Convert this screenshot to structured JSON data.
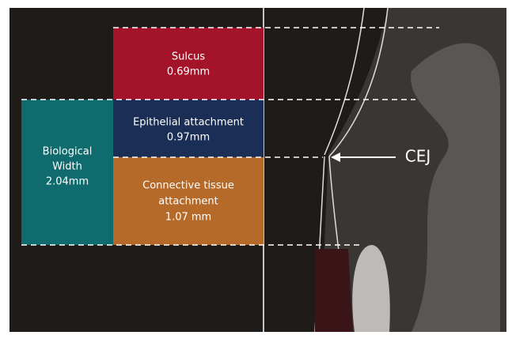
{
  "boxes": {
    "sulcus": {
      "lines": [
        "Sulcus",
        "0.69mm"
      ]
    },
    "epithelial": {
      "lines": [
        "Epithelial attachment",
        "0.97mm"
      ]
    },
    "connective": {
      "lines": [
        "Connective tissue",
        "attachment",
        "1.07 mm"
      ]
    },
    "biological": {
      "lines": [
        "Biological",
        "Width",
        "2.04mm"
      ]
    }
  },
  "cej": "CEJ"
}
